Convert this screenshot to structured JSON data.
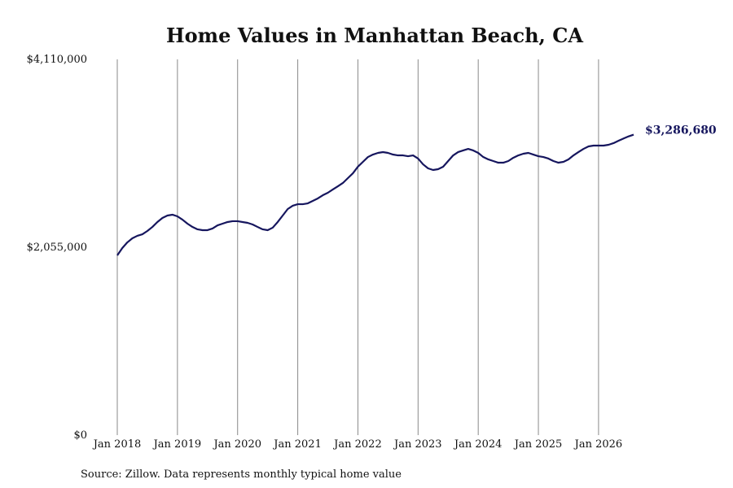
{
  "chart_data": {
    "type": "line",
    "title": "Home Values in Manhattan Beach, CA",
    "source": "Source: Zillow. Data represents monthly typical home value",
    "color": "#16165e",
    "grid": true,
    "x": [
      "2018-01",
      "2018-02",
      "2018-03",
      "2018-04",
      "2018-05",
      "2018-06",
      "2018-07",
      "2018-08",
      "2018-09",
      "2018-10",
      "2018-11",
      "2018-12",
      "2019-01",
      "2019-02",
      "2019-03",
      "2019-04",
      "2019-05",
      "2019-06",
      "2019-07",
      "2019-08",
      "2019-09",
      "2019-10",
      "2019-11",
      "2019-12",
      "2020-01",
      "2020-02",
      "2020-03",
      "2020-04",
      "2020-05",
      "2020-06",
      "2020-07",
      "2020-08",
      "2020-09",
      "2020-10",
      "2020-11",
      "2020-12",
      "2021-01",
      "2021-02",
      "2021-03",
      "2021-04",
      "2021-05",
      "2021-06",
      "2021-07",
      "2021-08",
      "2021-09",
      "2021-10",
      "2021-11",
      "2021-12",
      "2022-01",
      "2022-02",
      "2022-03",
      "2022-04",
      "2022-05",
      "2022-06",
      "2022-07",
      "2022-08",
      "2022-09",
      "2022-10",
      "2022-11",
      "2022-12",
      "2023-01",
      "2023-02",
      "2023-03",
      "2023-04",
      "2023-05",
      "2023-06",
      "2023-07",
      "2023-08",
      "2023-09",
      "2023-10",
      "2023-11",
      "2023-12",
      "2024-01",
      "2024-02",
      "2024-03",
      "2024-04",
      "2024-05",
      "2024-06",
      "2024-07",
      "2024-08",
      "2024-09",
      "2024-10",
      "2024-11",
      "2024-12",
      "2025-01",
      "2025-02",
      "2025-03",
      "2025-04",
      "2025-05",
      "2025-06",
      "2025-07",
      "2025-08",
      "2025-09",
      "2025-10",
      "2025-11",
      "2025-12",
      "2026-01",
      "2026-02",
      "2026-03",
      "2026-04",
      "2026-05",
      "2026-06",
      "2026-07",
      "2026-08"
    ],
    "values": [
      1966000,
      2046000,
      2108000,
      2153000,
      2180000,
      2197000,
      2233000,
      2277000,
      2331000,
      2375000,
      2402000,
      2411000,
      2393000,
      2357000,
      2313000,
      2277000,
      2251000,
      2242000,
      2242000,
      2260000,
      2295000,
      2313000,
      2331000,
      2340000,
      2340000,
      2331000,
      2322000,
      2304000,
      2277000,
      2251000,
      2242000,
      2269000,
      2331000,
      2402000,
      2473000,
      2509000,
      2526000,
      2526000,
      2535000,
      2562000,
      2589000,
      2624000,
      2651000,
      2687000,
      2722000,
      2758000,
      2811000,
      2864000,
      2936000,
      2989000,
      3042000,
      3069000,
      3087000,
      3096000,
      3087000,
      3069000,
      3060000,
      3060000,
      3051000,
      3060000,
      3025000,
      2962000,
      2918000,
      2900000,
      2909000,
      2936000,
      2998000,
      3060000,
      3096000,
      3114000,
      3131000,
      3114000,
      3087000,
      3042000,
      3016000,
      2998000,
      2980000,
      2980000,
      2998000,
      3034000,
      3060000,
      3078000,
      3087000,
      3069000,
      3051000,
      3042000,
      3025000,
      2998000,
      2980000,
      2989000,
      3016000,
      3060000,
      3096000,
      3131000,
      3158000,
      3167000,
      3167000,
      3167000,
      3176000,
      3194000,
      3220000,
      3245000,
      3268000,
      3286680
    ],
    "value_labels": [
      null,
      null,
      null,
      null,
      null,
      null,
      null,
      null,
      null,
      null,
      null,
      null,
      null,
      null,
      null,
      null,
      null,
      null,
      null,
      null,
      null,
      null,
      null,
      null,
      null,
      null,
      null,
      null,
      null,
      null,
      null,
      null,
      null,
      null,
      null,
      null,
      null,
      null,
      null,
      null,
      null,
      null,
      null,
      null,
      null,
      null,
      null,
      null,
      null,
      null,
      null,
      null,
      null,
      null,
      null,
      null,
      null,
      null,
      null,
      null,
      null,
      null,
      null,
      null,
      null,
      null,
      null,
      null,
      null,
      null,
      null,
      null,
      null,
      null,
      null,
      null,
      null,
      null,
      null,
      null,
      null,
      null,
      null,
      null,
      null,
      null,
      null,
      null,
      null,
      null,
      null,
      null,
      null,
      null,
      null,
      null,
      null,
      null,
      null,
      null,
      null,
      null,
      null,
      "$3,286,680"
    ],
    "xlim": [
      "2018-01",
      "2026-08"
    ],
    "xticks": [
      {
        "value": "2018-01",
        "label": "Jan 2018"
      },
      {
        "value": "2019-01",
        "label": "Jan 2019"
      },
      {
        "value": "2020-01",
        "label": "Jan 2020"
      },
      {
        "value": "2021-01",
        "label": "Jan 2021"
      },
      {
        "value": "2022-01",
        "label": "Jan 2022"
      },
      {
        "value": "2023-01",
        "label": "Jan 2023"
      },
      {
        "value": "2024-01",
        "label": "Jan 2024"
      },
      {
        "value": "2025-01",
        "label": "Jan 2025"
      },
      {
        "value": "2026-01",
        "label": "Jan 2026"
      }
    ],
    "ylim": [
      0,
      4110000
    ],
    "yticks": [
      {
        "value": 0,
        "label": "$0"
      },
      {
        "value": 2055000,
        "label": "$2,055,000"
      },
      {
        "value": 4110000,
        "label": "$4,110,000"
      }
    ]
  }
}
